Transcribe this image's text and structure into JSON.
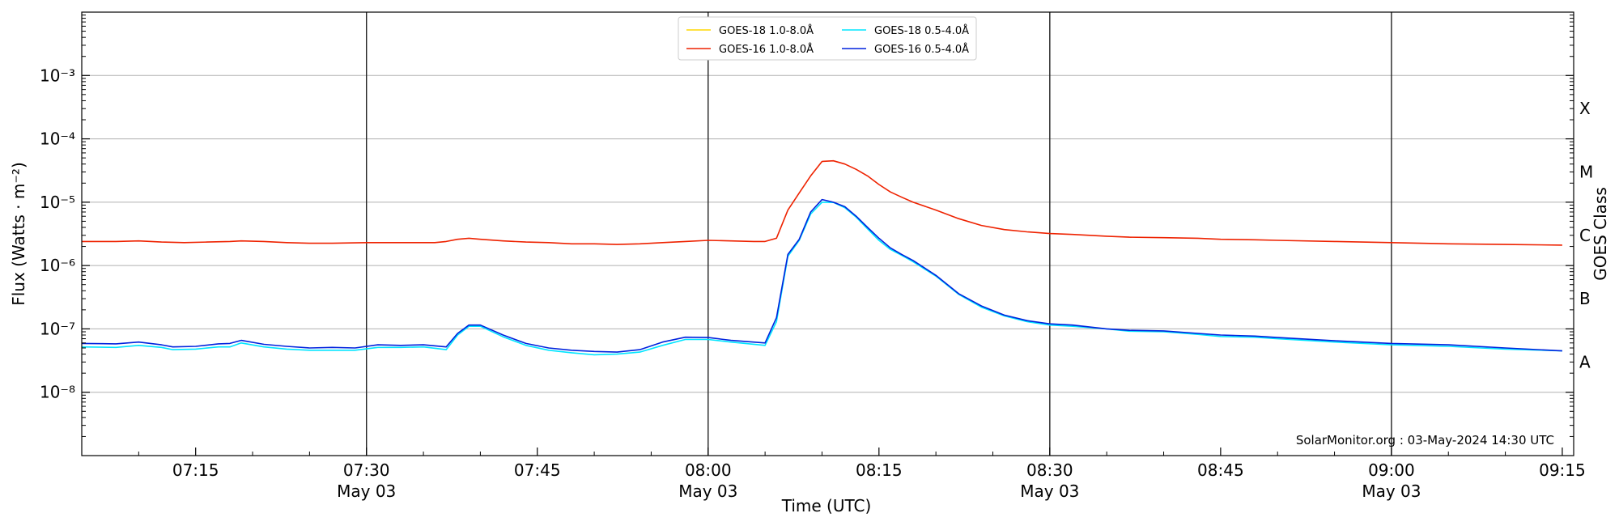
{
  "chart_data": {
    "type": "line",
    "xlabel": "Time (UTC)",
    "ylabel": "Flux (Watts · m⁻²)",
    "right_ylabel": "GOES Class",
    "yscale": "log",
    "ylim": [
      1e-09,
      0.01
    ],
    "xlim": [
      "07:05",
      "09:16"
    ],
    "grid": "horizontal at each decade",
    "legend_position": "top-center",
    "credit": "SolarMonitor.org : 03-May-2024 14:30 UTC",
    "y_ticks": [
      {
        "value": 1e-08,
        "label": "10⁻⁸"
      },
      {
        "value": 1e-07,
        "label": "10⁻⁷"
      },
      {
        "value": 1e-06,
        "label": "10⁻⁶"
      },
      {
        "value": 1e-05,
        "label": "10⁻⁵"
      },
      {
        "value": 0.0001,
        "label": "10⁻⁴"
      },
      {
        "value": 0.001,
        "label": "10⁻³"
      }
    ],
    "x_ticks": [
      {
        "time": "07:15",
        "label": "07:15",
        "date": ""
      },
      {
        "time": "07:30",
        "label": "07:30",
        "date": "May 03"
      },
      {
        "time": "07:45",
        "label": "07:45",
        "date": ""
      },
      {
        "time": "08:00",
        "label": "08:00",
        "date": "May 03"
      },
      {
        "time": "08:15",
        "label": "08:15",
        "date": ""
      },
      {
        "time": "08:30",
        "label": "08:30",
        "date": "May 03"
      },
      {
        "time": "08:45",
        "label": "08:45",
        "date": ""
      },
      {
        "time": "09:00",
        "label": "09:00",
        "date": "May 03"
      },
      {
        "time": "09:15",
        "label": "09:15",
        "date": ""
      }
    ],
    "vertical_lines": [
      "07:30",
      "08:00",
      "08:30",
      "09:00"
    ],
    "goes_classes": [
      {
        "label": "A",
        "value": 3e-08
      },
      {
        "label": "B",
        "value": 3e-07
      },
      {
        "label": "C",
        "value": 3e-06
      },
      {
        "label": "M",
        "value": 3e-05
      },
      {
        "label": "X",
        "value": 0.0003
      }
    ],
    "series": [
      {
        "name": "GOES-18 1.0-8.0Å",
        "color": "#ffd700",
        "x": [],
        "values": []
      },
      {
        "name": "GOES-16 1.0-8.0Å",
        "color": "#ee2200",
        "x": [
          "07:05",
          "07:08",
          "07:10",
          "07:12",
          "07:14",
          "07:16",
          "07:18",
          "07:19",
          "07:21",
          "07:23",
          "07:25",
          "07:27",
          "07:30",
          "07:32",
          "07:34",
          "07:36",
          "07:37",
          "07:38",
          "07:39",
          "07:40",
          "07:42",
          "07:44",
          "07:46",
          "07:48",
          "07:50",
          "07:52",
          "07:54",
          "07:56",
          "07:58",
          "08:00",
          "08:02",
          "08:04",
          "08:05",
          "08:06",
          "08:07",
          "08:08",
          "08:09",
          "08:10",
          "08:11",
          "08:12",
          "08:13",
          "08:14",
          "08:15",
          "08:16",
          "08:17",
          "08:18",
          "08:20",
          "08:22",
          "08:24",
          "08:26",
          "08:28",
          "08:30",
          "08:32",
          "08:35",
          "08:37",
          "08:40",
          "08:43",
          "08:45",
          "08:48",
          "08:50",
          "08:55",
          "09:00",
          "09:05",
          "09:10",
          "09:15"
        ],
        "values": [
          2.4e-06,
          2.4e-06,
          2.45e-06,
          2.35e-06,
          2.3e-06,
          2.35e-06,
          2.4e-06,
          2.45e-06,
          2.4e-06,
          2.3e-06,
          2.25e-06,
          2.25e-06,
          2.3e-06,
          2.3e-06,
          2.3e-06,
          2.3e-06,
          2.4e-06,
          2.6e-06,
          2.7e-06,
          2.6e-06,
          2.45e-06,
          2.35e-06,
          2.3e-06,
          2.2e-06,
          2.2e-06,
          2.15e-06,
          2.2e-06,
          2.3e-06,
          2.4e-06,
          2.5e-06,
          2.45e-06,
          2.4e-06,
          2.4e-06,
          2.7e-06,
          7.5e-06,
          1.4e-05,
          2.6e-05,
          4.4e-05,
          4.5e-05,
          4e-05,
          3.3e-05,
          2.6e-05,
          1.9e-05,
          1.45e-05,
          1.2e-05,
          1e-05,
          7.5e-06,
          5.5e-06,
          4.3e-06,
          3.7e-06,
          3.4e-06,
          3.2e-06,
          3.1e-06,
          2.9e-06,
          2.8e-06,
          2.75e-06,
          2.7e-06,
          2.6e-06,
          2.55e-06,
          2.5e-06,
          2.4e-06,
          2.3e-06,
          2.2e-06,
          2.15e-06,
          2.1e-06
        ]
      },
      {
        "name": "GOES-18 0.5-4.0Å",
        "color": "#00e5ff",
        "x": [
          "07:05",
          "07:08",
          "07:10",
          "07:12",
          "07:13",
          "07:15",
          "07:17",
          "07:18",
          "07:19",
          "07:21",
          "07:23",
          "07:25",
          "07:27",
          "07:29",
          "07:31",
          "07:33",
          "07:35",
          "07:37",
          "07:38",
          "07:39",
          "07:40",
          "07:42",
          "07:44",
          "07:46",
          "07:48",
          "07:50",
          "07:52",
          "07:54",
          "07:56",
          "07:58",
          "08:00",
          "08:02",
          "08:05",
          "08:06",
          "08:07",
          "08:08",
          "08:09",
          "08:10",
          "08:11",
          "08:12",
          "08:13",
          "08:14",
          "08:15",
          "08:16",
          "08:17",
          "08:18",
          "08:20",
          "08:22",
          "08:24",
          "08:26",
          "08:28",
          "08:30",
          "08:32",
          "08:35",
          "08:37",
          "08:40",
          "08:43",
          "08:45",
          "08:48",
          "08:50",
          "08:55",
          "09:00",
          "09:05",
          "09:10",
          "09:15"
        ],
        "values": [
          5.2e-08,
          5.1e-08,
          5.5e-08,
          5.1e-08,
          4.7e-08,
          4.8e-08,
          5.2e-08,
          5.2e-08,
          6e-08,
          5.2e-08,
          4.8e-08,
          4.6e-08,
          4.6e-08,
          4.6e-08,
          5.1e-08,
          5.1e-08,
          5.2e-08,
          4.7e-08,
          8e-08,
          1.1e-07,
          1.1e-07,
          7.5e-08,
          5.5e-08,
          4.6e-08,
          4.2e-08,
          3.9e-08,
          4e-08,
          4.3e-08,
          5.5e-08,
          6.8e-08,
          6.8e-08,
          6.2e-08,
          5.5e-08,
          1.3e-07,
          1.4e-06,
          2.5e-06,
          6.5e-06,
          1e-05,
          9.9e-06,
          8.2e-06,
          5.8e-06,
          3.8e-06,
          2.5e-06,
          1.8e-06,
          1.45e-06,
          1.15e-06,
          6.8e-07,
          3.5e-07,
          2.2e-07,
          1.6e-07,
          1.3e-07,
          1.15e-07,
          1.1e-07,
          1e-07,
          9.2e-08,
          9e-08,
          8.2e-08,
          7.6e-08,
          7.4e-08,
          7e-08,
          6.2e-08,
          5.6e-08,
          5.3e-08,
          4.8e-08,
          4.5e-08
        ]
      },
      {
        "name": "GOES-16 0.5-4.0Å",
        "color": "#0022dd",
        "x": [
          "07:05",
          "07:08",
          "07:10",
          "07:12",
          "07:13",
          "07:15",
          "07:17",
          "07:18",
          "07:19",
          "07:21",
          "07:23",
          "07:25",
          "07:27",
          "07:29",
          "07:31",
          "07:33",
          "07:35",
          "07:37",
          "07:38",
          "07:39",
          "07:40",
          "07:42",
          "07:44",
          "07:46",
          "07:48",
          "07:50",
          "07:52",
          "07:54",
          "07:56",
          "07:58",
          "08:00",
          "08:02",
          "08:05",
          "08:06",
          "08:07",
          "08:08",
          "08:09",
          "08:10",
          "08:11",
          "08:12",
          "08:13",
          "08:14",
          "08:15",
          "08:16",
          "08:17",
          "08:18",
          "08:20",
          "08:22",
          "08:24",
          "08:26",
          "08:28",
          "08:30",
          "08:32",
          "08:35",
          "08:37",
          "08:40",
          "08:43",
          "08:45",
          "08:48",
          "08:50",
          "08:55",
          "09:00",
          "09:05",
          "09:10",
          "09:15"
        ],
        "values": [
          5.9e-08,
          5.8e-08,
          6.2e-08,
          5.6e-08,
          5.2e-08,
          5.3e-08,
          5.8e-08,
          5.9e-08,
          6.6e-08,
          5.7e-08,
          5.3e-08,
          5e-08,
          5.1e-08,
          5e-08,
          5.6e-08,
          5.5e-08,
          5.6e-08,
          5.2e-08,
          8.5e-08,
          1.15e-07,
          1.15e-07,
          8e-08,
          5.9e-08,
          5e-08,
          4.6e-08,
          4.4e-08,
          4.3e-08,
          4.7e-08,
          6.2e-08,
          7.4e-08,
          7.3e-08,
          6.6e-08,
          6e-08,
          1.5e-07,
          1.5e-06,
          2.6e-06,
          7e-06,
          1.1e-05,
          1e-05,
          8.5e-06,
          6e-06,
          4e-06,
          2.7e-06,
          1.9e-06,
          1.5e-06,
          1.2e-06,
          7e-07,
          3.6e-07,
          2.3e-07,
          1.65e-07,
          1.35e-07,
          1.2e-07,
          1.15e-07,
          1e-07,
          9.5e-08,
          9.3e-08,
          8.5e-08,
          8e-08,
          7.7e-08,
          7.3e-08,
          6.5e-08,
          5.9e-08,
          5.6e-08,
          5e-08,
          4.5e-08
        ]
      }
    ]
  }
}
